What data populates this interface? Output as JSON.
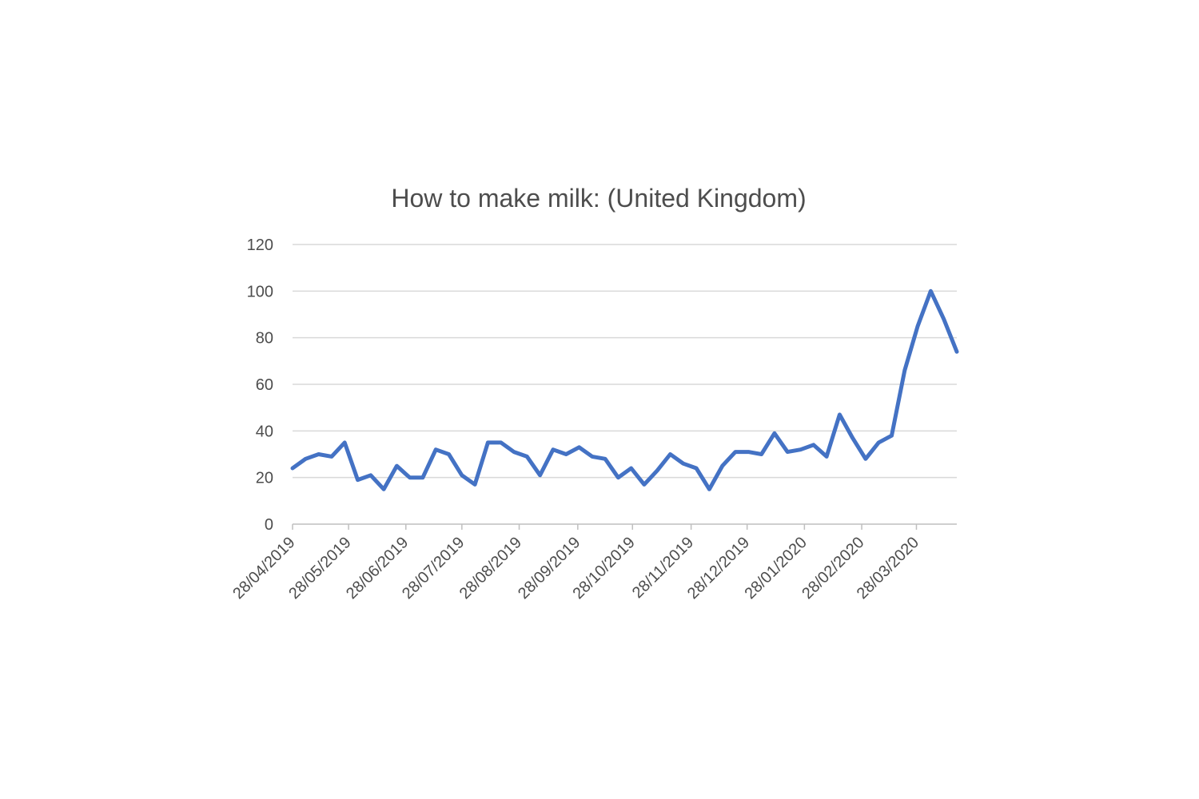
{
  "chart_data": {
    "type": "line",
    "title": "How to make milk: (United Kingdom)",
    "xlabel": "",
    "ylabel": "",
    "ylim": [
      0,
      120
    ],
    "yticks": [
      "0",
      "20",
      "40",
      "60",
      "80",
      "100",
      "120"
    ],
    "x_tick_labels": [
      {
        "label": "28/04/2019",
        "index": 0
      },
      {
        "label": "28/05/2019",
        "index": 4.3
      },
      {
        "label": "28/06/2019",
        "index": 8.7
      },
      {
        "label": "28/07/2019",
        "index": 13
      },
      {
        "label": "28/08/2019",
        "index": 17.4
      },
      {
        "label": "28/09/2019",
        "index": 21.9
      },
      {
        "label": "28/10/2019",
        "index": 26.1
      },
      {
        "label": "28/11/2019",
        "index": 30.6
      },
      {
        "label": "28/12/2019",
        "index": 34.9
      },
      {
        "label": "28/01/2020",
        "index": 39.3
      },
      {
        "label": "28/02/2020",
        "index": 43.7
      },
      {
        "label": "28/03/2020",
        "index": 47.9
      }
    ],
    "grid": true,
    "legend": "none",
    "series": [
      {
        "color": "#4472c4",
        "values": [
          24,
          28,
          30,
          29,
          35,
          19,
          21,
          15,
          25,
          20,
          20,
          32,
          30,
          21,
          17,
          35,
          35,
          31,
          29,
          21,
          32,
          30,
          33,
          29,
          28,
          20,
          24,
          17,
          23,
          30,
          26,
          24,
          15,
          25,
          31,
          31,
          30,
          39,
          31,
          32,
          34,
          29,
          47,
          37,
          28,
          35,
          38,
          66,
          85,
          100,
          88,
          74
        ]
      }
    ]
  }
}
